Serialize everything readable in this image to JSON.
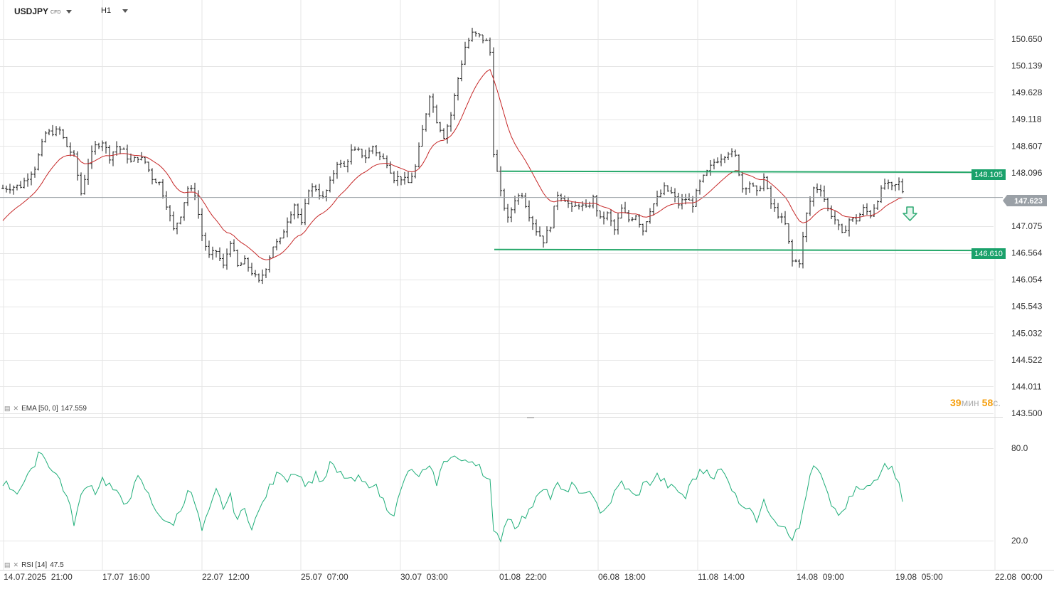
{
  "header": {
    "symbol": "USDJPY",
    "instrument_type": "CFD",
    "timeframe": "H1"
  },
  "price_axis": {
    "labels": [
      "150.650",
      "150.139",
      "149.628",
      "149.118",
      "148.607",
      "148.096",
      "147.075",
      "146.564",
      "146.054",
      "145.543",
      "145.032",
      "144.522",
      "144.011",
      "143.500"
    ]
  },
  "time_axis": {
    "labels": [
      "14.07.2025  21:00",
      "17.07  16:00",
      "22.07  12:00",
      "25.07  07:00",
      "30.07  03:00",
      "01.08  22:00",
      "06.08  18:00",
      "11.08  14:00",
      "14.08  09:00",
      "19.08  05:00",
      "22.08  00:00"
    ]
  },
  "levels": {
    "resistance": "148.105",
    "support": "146.610",
    "current": "147.623"
  },
  "ema": {
    "label": "EMA [50, 0]",
    "value": "147.559"
  },
  "rsi": {
    "label": "RSI [14]",
    "value": "47.5",
    "axis_labels": [
      "80.0",
      "20.0"
    ]
  },
  "timer": {
    "minutes": "39",
    "min_unit": "мин",
    "seconds": "58",
    "sec_unit": "с."
  },
  "colors": {
    "candle": "#1a1a1a",
    "ema": "#c62828",
    "level": "#26a86a",
    "rsi": "#1fae79",
    "current_badge": "#9aa0a6",
    "arrow": "#2eaa74"
  },
  "icons": {
    "indicator": "indicator-icon",
    "dropdown": "chevron-down-icon",
    "down_arrow": "arrow-down-icon"
  },
  "chart_data": {
    "type": "candlestick",
    "xlabel": "",
    "ylabel": "",
    "ylim": [
      143.5,
      150.9
    ],
    "waypoints": [
      [
        0,
        147.8
      ],
      [
        5,
        147.85
      ],
      [
        9,
        148.2
      ],
      [
        12,
        148.85
      ],
      [
        16,
        148.9
      ],
      [
        18,
        148.6
      ],
      [
        20,
        148.4
      ],
      [
        22,
        147.7
      ],
      [
        24,
        148.3
      ],
      [
        26,
        148.6
      ],
      [
        28,
        148.7
      ],
      [
        30,
        148.4
      ],
      [
        32,
        148.6
      ],
      [
        34,
        148.5
      ],
      [
        36,
        148.3
      ],
      [
        38,
        148.4
      ],
      [
        40,
        148.3
      ],
      [
        42,
        148.0
      ],
      [
        44,
        147.9
      ],
      [
        46,
        147.5
      ],
      [
        48,
        147.0
      ],
      [
        50,
        147.3
      ],
      [
        52,
        147.8
      ],
      [
        54,
        147.7
      ],
      [
        56,
        146.9
      ],
      [
        58,
        146.5
      ],
      [
        60,
        146.6
      ],
      [
        62,
        146.3
      ],
      [
        64,
        146.8
      ],
      [
        66,
        146.3
      ],
      [
        68,
        146.4
      ],
      [
        70,
        146.2
      ],
      [
        72,
        146.0
      ],
      [
        74,
        146.3
      ],
      [
        76,
        146.7
      ],
      [
        78,
        146.8
      ],
      [
        80,
        147.2
      ],
      [
        82,
        147.5
      ],
      [
        84,
        147.1
      ],
      [
        86,
        147.8
      ],
      [
        88,
        147.8
      ],
      [
        90,
        147.6
      ],
      [
        92,
        147.9
      ],
      [
        94,
        148.3
      ],
      [
        96,
        148.2
      ],
      [
        98,
        148.5
      ],
      [
        100,
        148.5
      ],
      [
        102,
        148.4
      ],
      [
        104,
        148.6
      ],
      [
        106,
        148.4
      ],
      [
        108,
        148.3
      ],
      [
        110,
        148.0
      ],
      [
        112,
        148.0
      ],
      [
        114,
        147.9
      ],
      [
        116,
        148.2
      ],
      [
        118,
        148.9
      ],
      [
        120,
        149.6
      ],
      [
        122,
        149.1
      ],
      [
        124,
        148.8
      ],
      [
        126,
        149.2
      ],
      [
        128,
        149.9
      ],
      [
        130,
        150.5
      ],
      [
        132,
        150.75
      ],
      [
        134,
        150.7
      ],
      [
        136,
        150.6
      ],
      [
        137,
        150.4
      ],
      [
        138,
        148.5
      ],
      [
        140,
        147.7
      ],
      [
        142,
        147.2
      ],
      [
        144,
        147.6
      ],
      [
        146,
        147.7
      ],
      [
        148,
        147.3
      ],
      [
        150,
        147.0
      ],
      [
        152,
        146.8
      ],
      [
        154,
        147.1
      ],
      [
        156,
        147.7
      ],
      [
        158,
        147.6
      ],
      [
        160,
        147.4
      ],
      [
        162,
        147.5
      ],
      [
        164,
        147.4
      ],
      [
        166,
        147.6
      ],
      [
        168,
        147.2
      ],
      [
        170,
        147.3
      ],
      [
        172,
        147.0
      ],
      [
        174,
        147.4
      ],
      [
        176,
        147.2
      ],
      [
        178,
        147.3
      ],
      [
        180,
        147.0
      ],
      [
        182,
        147.4
      ],
      [
        184,
        147.6
      ],
      [
        186,
        147.8
      ],
      [
        188,
        147.7
      ],
      [
        190,
        147.5
      ],
      [
        192,
        147.6
      ],
      [
        194,
        147.5
      ],
      [
        196,
        147.9
      ],
      [
        198,
        148.1
      ],
      [
        200,
        148.3
      ],
      [
        202,
        148.4
      ],
      [
        204,
        148.5
      ],
      [
        206,
        148.4
      ],
      [
        208,
        147.8
      ],
      [
        210,
        147.9
      ],
      [
        212,
        147.7
      ],
      [
        214,
        148.0
      ],
      [
        216,
        147.5
      ],
      [
        218,
        147.3
      ],
      [
        220,
        147.1
      ],
      [
        222,
        146.4
      ],
      [
        224,
        146.4
      ],
      [
        226,
        147.3
      ],
      [
        228,
        147.8
      ],
      [
        230,
        147.8
      ],
      [
        232,
        147.4
      ],
      [
        234,
        147.2
      ],
      [
        236,
        146.9
      ],
      [
        238,
        147.2
      ],
      [
        240,
        147.2
      ],
      [
        242,
        147.4
      ],
      [
        244,
        147.3
      ],
      [
        246,
        147.6
      ],
      [
        248,
        147.9
      ],
      [
        250,
        147.8
      ],
      [
        252,
        147.9
      ],
      [
        253,
        147.75
      ]
    ],
    "rsi_points": [
      [
        0,
        58
      ],
      [
        4,
        52
      ],
      [
        8,
        64
      ],
      [
        10,
        78
      ],
      [
        12,
        74
      ],
      [
        14,
        65
      ],
      [
        16,
        60
      ],
      [
        18,
        48
      ],
      [
        20,
        32
      ],
      [
        22,
        48
      ],
      [
        24,
        58
      ],
      [
        26,
        52
      ],
      [
        28,
        60
      ],
      [
        30,
        56
      ],
      [
        32,
        50
      ],
      [
        34,
        44
      ],
      [
        36,
        50
      ],
      [
        38,
        60
      ],
      [
        40,
        54
      ],
      [
        42,
        44
      ],
      [
        44,
        38
      ],
      [
        46,
        30
      ],
      [
        48,
        32
      ],
      [
        50,
        40
      ],
      [
        52,
        54
      ],
      [
        54,
        44
      ],
      [
        56,
        26
      ],
      [
        58,
        38
      ],
      [
        60,
        52
      ],
      [
        62,
        42
      ],
      [
        64,
        48
      ],
      [
        66,
        34
      ],
      [
        68,
        40
      ],
      [
        70,
        30
      ],
      [
        72,
        38
      ],
      [
        74,
        50
      ],
      [
        76,
        58
      ],
      [
        78,
        66
      ],
      [
        80,
        60
      ],
      [
        82,
        66
      ],
      [
        84,
        60
      ],
      [
        86,
        56
      ],
      [
        88,
        64
      ],
      [
        90,
        56
      ],
      [
        92,
        70
      ],
      [
        94,
        64
      ],
      [
        96,
        62
      ],
      [
        98,
        58
      ],
      [
        100,
        60
      ],
      [
        102,
        56
      ],
      [
        104,
        58
      ],
      [
        106,
        50
      ],
      [
        108,
        42
      ],
      [
        110,
        38
      ],
      [
        112,
        52
      ],
      [
        114,
        66
      ],
      [
        116,
        62
      ],
      [
        118,
        64
      ],
      [
        120,
        66
      ],
      [
        122,
        58
      ],
      [
        124,
        70
      ],
      [
        126,
        76
      ],
      [
        128,
        73
      ],
      [
        130,
        70
      ],
      [
        132,
        72
      ],
      [
        134,
        70
      ],
      [
        136,
        60
      ],
      [
        137,
        58
      ],
      [
        138,
        24
      ],
      [
        140,
        22
      ],
      [
        142,
        36
      ],
      [
        144,
        30
      ],
      [
        146,
        34
      ],
      [
        148,
        38
      ],
      [
        150,
        50
      ],
      [
        152,
        56
      ],
      [
        154,
        48
      ],
      [
        156,
        56
      ],
      [
        158,
        50
      ],
      [
        160,
        58
      ],
      [
        162,
        48
      ],
      [
        164,
        54
      ],
      [
        166,
        46
      ],
      [
        168,
        40
      ],
      [
        170,
        42
      ],
      [
        172,
        50
      ],
      [
        174,
        58
      ],
      [
        176,
        52
      ],
      [
        178,
        48
      ],
      [
        180,
        56
      ],
      [
        182,
        58
      ],
      [
        184,
        62
      ],
      [
        186,
        58
      ],
      [
        188,
        54
      ],
      [
        190,
        52
      ],
      [
        192,
        48
      ],
      [
        194,
        60
      ],
      [
        196,
        64
      ],
      [
        198,
        66
      ],
      [
        200,
        62
      ],
      [
        202,
        66
      ],
      [
        204,
        58
      ],
      [
        206,
        52
      ],
      [
        208,
        40
      ],
      [
        210,
        44
      ],
      [
        212,
        34
      ],
      [
        214,
        44
      ],
      [
        216,
        38
      ],
      [
        218,
        32
      ],
      [
        220,
        30
      ],
      [
        222,
        22
      ],
      [
        224,
        28
      ],
      [
        226,
        52
      ],
      [
        228,
        68
      ],
      [
        230,
        62
      ],
      [
        232,
        48
      ],
      [
        234,
        40
      ],
      [
        236,
        36
      ],
      [
        238,
        46
      ],
      [
        240,
        54
      ],
      [
        242,
        52
      ],
      [
        244,
        56
      ],
      [
        246,
        62
      ],
      [
        248,
        72
      ],
      [
        250,
        66
      ],
      [
        252,
        60
      ],
      [
        253,
        47
      ]
    ]
  }
}
